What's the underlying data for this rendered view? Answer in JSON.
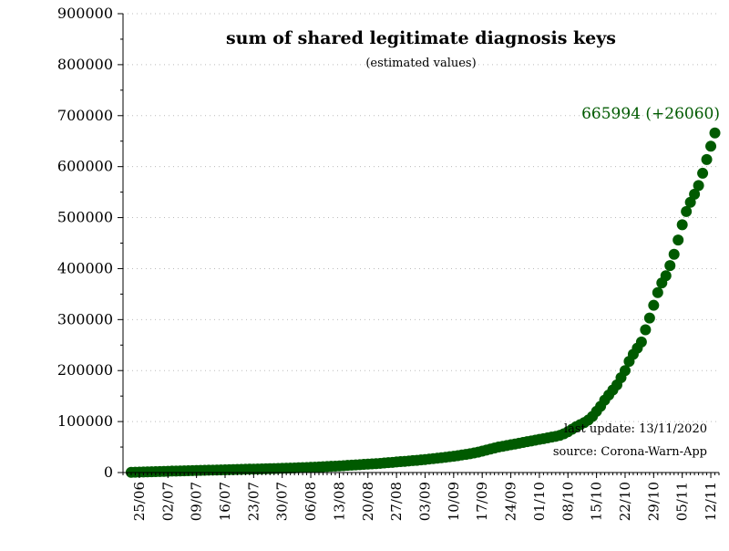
{
  "chart_data": {
    "type": "scatter",
    "title": "sum of shared legitimate diagnosis keys",
    "subtitle": "(estimated values)",
    "xlabel": "",
    "ylabel": "",
    "ylim": [
      0,
      900000
    ],
    "xlim": [
      "2020-06-21",
      "2020-11-14"
    ],
    "y_ticks": [
      0,
      100000,
      200000,
      300000,
      400000,
      500000,
      600000,
      700000,
      800000,
      900000
    ],
    "x_tick_labels": [
      {
        "date": "2020-06-25",
        "label": "25/06"
      },
      {
        "date": "2020-07-02",
        "label": "02/07"
      },
      {
        "date": "2020-07-09",
        "label": "09/07"
      },
      {
        "date": "2020-07-16",
        "label": "16/07"
      },
      {
        "date": "2020-07-23",
        "label": "23/07"
      },
      {
        "date": "2020-07-30",
        "label": "30/07"
      },
      {
        "date": "2020-08-06",
        "label": "06/08"
      },
      {
        "date": "2020-08-13",
        "label": "13/08"
      },
      {
        "date": "2020-08-20",
        "label": "20/08"
      },
      {
        "date": "2020-08-27",
        "label": "27/08"
      },
      {
        "date": "2020-09-03",
        "label": "03/09"
      },
      {
        "date": "2020-09-10",
        "label": "10/09"
      },
      {
        "date": "2020-09-17",
        "label": "17/09"
      },
      {
        "date": "2020-09-24",
        "label": "24/09"
      },
      {
        "date": "2020-10-01",
        "label": "01/10"
      },
      {
        "date": "2020-10-08",
        "label": "08/10"
      },
      {
        "date": "2020-10-15",
        "label": "15/10"
      },
      {
        "date": "2020-10-22",
        "label": "22/10"
      },
      {
        "date": "2020-10-29",
        "label": "29/10"
      },
      {
        "date": "2020-11-05",
        "label": "05/11"
      },
      {
        "date": "2020-11-12",
        "label": "12/11"
      }
    ],
    "grid": {
      "horizontal": true,
      "style": "dotted"
    },
    "series": [
      {
        "color": "#005a00",
        "points": [
          [
            "2020-06-23",
            500
          ],
          [
            "2020-06-24",
            700
          ],
          [
            "2020-06-25",
            1000
          ],
          [
            "2020-06-26",
            1200
          ],
          [
            "2020-06-27",
            1400
          ],
          [
            "2020-06-28",
            1600
          ],
          [
            "2020-06-29",
            1800
          ],
          [
            "2020-06-30",
            2000
          ],
          [
            "2020-07-01",
            2200
          ],
          [
            "2020-07-02",
            2500
          ],
          [
            "2020-07-03",
            2800
          ],
          [
            "2020-07-04",
            3000
          ],
          [
            "2020-07-05",
            3200
          ],
          [
            "2020-07-06",
            3400
          ],
          [
            "2020-07-07",
            3600
          ],
          [
            "2020-07-08",
            3800
          ],
          [
            "2020-07-09",
            4000
          ],
          [
            "2020-07-10",
            4200
          ],
          [
            "2020-07-11",
            4400
          ],
          [
            "2020-07-12",
            4600
          ],
          [
            "2020-07-13",
            4800
          ],
          [
            "2020-07-14",
            5000
          ],
          [
            "2020-07-15",
            5200
          ],
          [
            "2020-07-16",
            5400
          ],
          [
            "2020-07-17",
            5600
          ],
          [
            "2020-07-18",
            5800
          ],
          [
            "2020-07-19",
            6000
          ],
          [
            "2020-07-20",
            6200
          ],
          [
            "2020-07-21",
            6400
          ],
          [
            "2020-07-22",
            6600
          ],
          [
            "2020-07-23",
            6800
          ],
          [
            "2020-07-24",
            7000
          ],
          [
            "2020-07-25",
            7200
          ],
          [
            "2020-07-26",
            7400
          ],
          [
            "2020-07-27",
            7600
          ],
          [
            "2020-07-28",
            7800
          ],
          [
            "2020-07-29",
            8000
          ],
          [
            "2020-07-30",
            8200
          ],
          [
            "2020-07-31",
            8500
          ],
          [
            "2020-08-01",
            8800
          ],
          [
            "2020-08-02",
            9000
          ],
          [
            "2020-08-03",
            9300
          ],
          [
            "2020-08-04",
            9600
          ],
          [
            "2020-08-05",
            9900
          ],
          [
            "2020-08-06",
            10200
          ],
          [
            "2020-08-07",
            10600
          ],
          [
            "2020-08-08",
            11000
          ],
          [
            "2020-08-09",
            11400
          ],
          [
            "2020-08-10",
            11800
          ],
          [
            "2020-08-11",
            12200
          ],
          [
            "2020-08-12",
            12600
          ],
          [
            "2020-08-13",
            13000
          ],
          [
            "2020-08-14",
            13500
          ],
          [
            "2020-08-15",
            14000
          ],
          [
            "2020-08-16",
            14500
          ],
          [
            "2020-08-17",
            15000
          ],
          [
            "2020-08-18",
            15500
          ],
          [
            "2020-08-19",
            16000
          ],
          [
            "2020-08-20",
            16500
          ],
          [
            "2020-08-21",
            17000
          ],
          [
            "2020-08-22",
            17500
          ],
          [
            "2020-08-23",
            18000
          ],
          [
            "2020-08-24",
            18700
          ],
          [
            "2020-08-25",
            19400
          ],
          [
            "2020-08-26",
            20000
          ],
          [
            "2020-08-27",
            20700
          ],
          [
            "2020-08-28",
            21400
          ],
          [
            "2020-08-29",
            22000
          ],
          [
            "2020-08-30",
            22700
          ],
          [
            "2020-08-31",
            23400
          ],
          [
            "2020-09-01",
            24000
          ],
          [
            "2020-09-02",
            24800
          ],
          [
            "2020-09-03",
            25600
          ],
          [
            "2020-09-04",
            26500
          ],
          [
            "2020-09-05",
            27300
          ],
          [
            "2020-09-06",
            28200
          ],
          [
            "2020-09-07",
            29000
          ],
          [
            "2020-09-08",
            30000
          ],
          [
            "2020-09-09",
            31000
          ],
          [
            "2020-09-10",
            32000
          ],
          [
            "2020-09-11",
            33200
          ],
          [
            "2020-09-12",
            34400
          ],
          [
            "2020-09-13",
            35600
          ],
          [
            "2020-09-14",
            37000
          ],
          [
            "2020-09-15",
            38500
          ],
          [
            "2020-09-16",
            40000
          ],
          [
            "2020-09-17",
            42000
          ],
          [
            "2020-09-18",
            44000
          ],
          [
            "2020-09-19",
            46000
          ],
          [
            "2020-09-20",
            48000
          ],
          [
            "2020-09-21",
            50000
          ],
          [
            "2020-09-22",
            51500
          ],
          [
            "2020-09-23",
            53000
          ],
          [
            "2020-09-24",
            54500
          ],
          [
            "2020-09-25",
            56000
          ],
          [
            "2020-09-26",
            57500
          ],
          [
            "2020-09-27",
            59000
          ],
          [
            "2020-09-28",
            60500
          ],
          [
            "2020-09-29",
            62000
          ],
          [
            "2020-09-30",
            63500
          ],
          [
            "2020-10-01",
            65000
          ],
          [
            "2020-10-02",
            66500
          ],
          [
            "2020-10-03",
            68000
          ],
          [
            "2020-10-04",
            69500
          ],
          [
            "2020-10-05",
            71000
          ],
          [
            "2020-10-06",
            73000
          ],
          [
            "2020-10-07",
            76000
          ],
          [
            "2020-10-08",
            80000
          ],
          [
            "2020-10-09",
            85000
          ],
          [
            "2020-10-10",
            90000
          ],
          [
            "2020-10-11",
            94000
          ],
          [
            "2020-10-12",
            98000
          ],
          [
            "2020-10-13",
            103000
          ],
          [
            "2020-10-14",
            110000
          ],
          [
            "2020-10-15",
            120000
          ],
          [
            "2020-10-16",
            130000
          ],
          [
            "2020-10-17",
            142000
          ],
          [
            "2020-10-18",
            152000
          ],
          [
            "2020-10-19",
            162000
          ],
          [
            "2020-10-20",
            172000
          ],
          [
            "2020-10-21",
            186000
          ],
          [
            "2020-10-22",
            200000
          ],
          [
            "2020-10-23",
            218000
          ],
          [
            "2020-10-24",
            232000
          ],
          [
            "2020-10-25",
            244000
          ],
          [
            "2020-10-26",
            256000
          ],
          [
            "2020-10-27",
            280000
          ],
          [
            "2020-10-28",
            303000
          ],
          [
            "2020-10-29",
            328000
          ],
          [
            "2020-10-30",
            353000
          ],
          [
            "2020-10-31",
            372000
          ],
          [
            "2020-11-01",
            386000
          ],
          [
            "2020-11-02",
            406000
          ],
          [
            "2020-11-03",
            428000
          ],
          [
            "2020-11-04",
            456000
          ],
          [
            "2020-11-05",
            486000
          ],
          [
            "2020-11-06",
            512000
          ],
          [
            "2020-11-07",
            530000
          ],
          [
            "2020-11-08",
            546000
          ],
          [
            "2020-11-09",
            563000
          ],
          [
            "2020-11-10",
            587000
          ],
          [
            "2020-11-11",
            614000
          ],
          [
            "2020-11-12",
            640000
          ],
          [
            "2020-11-13",
            665994
          ]
        ]
      }
    ],
    "annotations": {
      "last_value_label": "665994 (+26060)",
      "last_update": "last update: 13/11/2020",
      "source": "source: Corona-Warn-App"
    }
  }
}
